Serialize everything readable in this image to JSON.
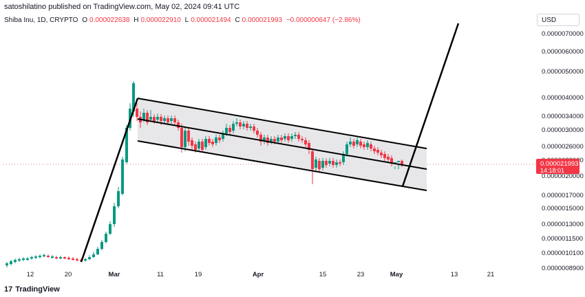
{
  "header": {
    "published": "satoshilatino published on TradingView.com, May 02, 2024 09:41 UTC"
  },
  "ohlc": {
    "symbol": "Shiba Inu, 1D, CRYPTO",
    "o_label": "O",
    "o": "0.000022638",
    "h_label": "H",
    "h": "0.000022910",
    "l_label": "L",
    "l": "0.000021494",
    "c_label": "C",
    "c": "0.000021993",
    "change": "−0.000000647 (−2.86%)"
  },
  "currency": "USD",
  "price_axis": [
    "0.0000070000",
    "0.0000060000",
    "0.0000050000",
    "0.0000040000",
    "0.0000034000",
    "0.0000030000",
    "0.0000026000",
    "0.0000023000",
    "0.0000020000",
    "0.0000017000",
    "0.0000015000",
    "0.0000013000",
    "0.0000011500",
    "0.0000010100",
    "0.0000008900"
  ],
  "last_price": {
    "value": "0.000021993",
    "countdown": "14:18:01"
  },
  "time_axis": [
    "12",
    "20",
    "Mar",
    "11",
    "19",
    "Apr",
    "15",
    "23",
    "May",
    "13",
    "21"
  ],
  "branding": {
    "name": "TradingView",
    "mark": "17"
  },
  "colors": {
    "up": "#089981",
    "down": "#f23645",
    "channel_fill": "#e7e7ea",
    "line": "#000000"
  },
  "chart_data": {
    "type": "candlestick",
    "symbol": "Shiba Inu, 1D, CRYPTO",
    "scale": "log",
    "drawings": [
      "descending channel",
      "flagpole",
      "projected breakout line"
    ],
    "last_close": 2.1993e-05
  }
}
